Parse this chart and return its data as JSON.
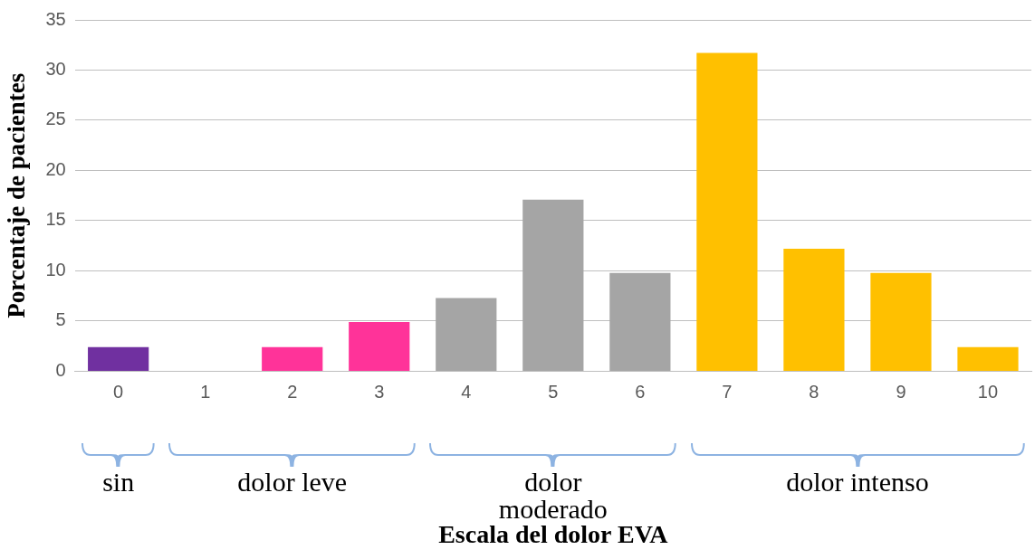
{
  "chart_data": {
    "type": "bar",
    "xlabel": "Escala del dolor EVA",
    "ylabel": "Porcentaje de pacientes",
    "categories": [
      "0",
      "1",
      "2",
      "3",
      "4",
      "5",
      "6",
      "7",
      "8",
      "9",
      "10"
    ],
    "values": [
      2.4,
      0,
      2.4,
      4.9,
      7.3,
      17.1,
      9.8,
      31.7,
      12.2,
      9.8,
      2.4
    ],
    "colors": [
      "#7030a0",
      "#ff3399",
      "#ff3399",
      "#ff3399",
      "#a5a5a5",
      "#a5a5a5",
      "#a5a5a5",
      "#ffc000",
      "#ffc000",
      "#ffc000",
      "#ffc000"
    ],
    "ylim": [
      0,
      35
    ],
    "yticks": [
      0,
      5,
      10,
      15,
      20,
      25,
      30,
      35
    ],
    "grid": "y",
    "legend": false,
    "annotations": [
      "sin",
      "dolor leve",
      "dolor moderado",
      "dolor intenso"
    ]
  }
}
